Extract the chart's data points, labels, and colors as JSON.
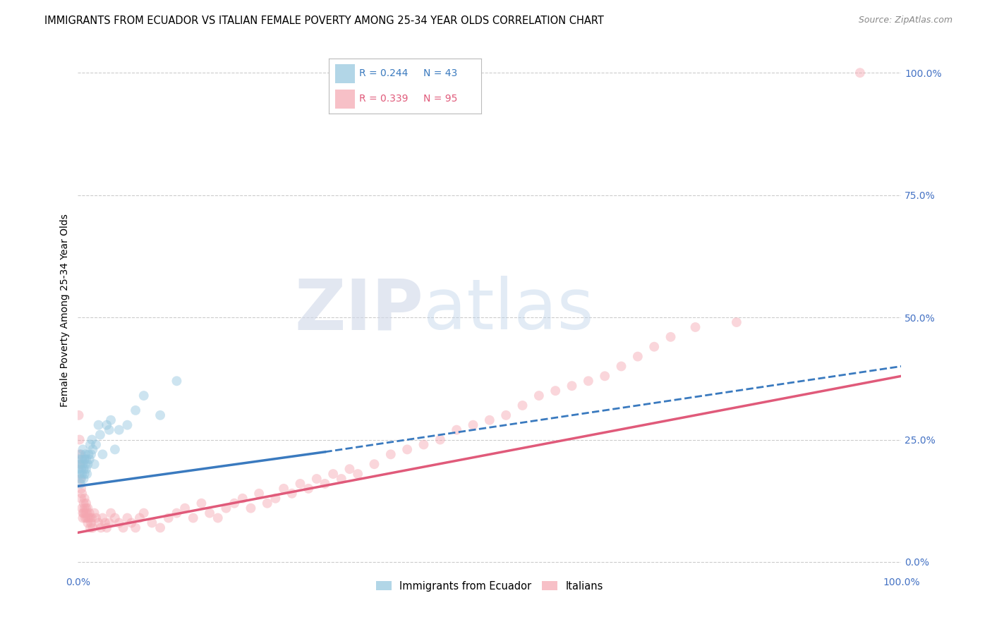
{
  "title": "IMMIGRANTS FROM ECUADOR VS ITALIAN FEMALE POVERTY AMONG 25-34 YEAR OLDS CORRELATION CHART",
  "source": "Source: ZipAtlas.com",
  "ylabel": "Female Poverty Among 25-34 Year Olds",
  "xlim": [
    0,
    1.0
  ],
  "ylim": [
    -0.02,
    1.05
  ],
  "blue_color": "#92c5de",
  "pink_color": "#f4a6b0",
  "blue_line_color": "#3a7abf",
  "pink_line_color": "#e05a7a",
  "tick_color": "#4472c4",
  "legend_R_blue": "R = 0.244",
  "legend_N_blue": "N = 43",
  "legend_R_pink": "R = 0.339",
  "legend_N_pink": "N = 95",
  "legend_label_blue": "Immigrants from Ecuador",
  "legend_label_pink": "Italians",
  "watermark_zip": "ZIP",
  "watermark_atlas": "atlas",
  "grid_color": "#cccccc",
  "background_color": "#ffffff",
  "title_fontsize": 10.5,
  "axis_label_fontsize": 10,
  "tick_fontsize": 10,
  "marker_size": 100,
  "marker_alpha": 0.45,
  "blue_trend_x0": 0.0,
  "blue_trend_x1": 0.3,
  "blue_trend_x1_dash": 1.0,
  "blue_trend_y0": 0.155,
  "blue_trend_y1": 0.225,
  "blue_trend_y1_dash": 0.4,
  "pink_trend_x0": 0.0,
  "pink_trend_x1": 1.0,
  "pink_trend_y0": 0.06,
  "pink_trend_y1": 0.38,
  "blue_scatter_x": [
    0.001,
    0.002,
    0.002,
    0.003,
    0.003,
    0.004,
    0.004,
    0.004,
    0.005,
    0.005,
    0.006,
    0.006,
    0.007,
    0.007,
    0.008,
    0.008,
    0.009,
    0.009,
    0.01,
    0.01,
    0.011,
    0.012,
    0.013,
    0.014,
    0.015,
    0.016,
    0.017,
    0.018,
    0.02,
    0.022,
    0.025,
    0.027,
    0.03,
    0.035,
    0.038,
    0.04,
    0.045,
    0.05,
    0.06,
    0.07,
    0.08,
    0.1,
    0.12
  ],
  "blue_scatter_y": [
    0.19,
    0.21,
    0.18,
    0.2,
    0.16,
    0.17,
    0.22,
    0.19,
    0.21,
    0.18,
    0.23,
    0.2,
    0.19,
    0.17,
    0.21,
    0.18,
    0.2,
    0.22,
    0.19,
    0.21,
    0.18,
    0.2,
    0.22,
    0.21,
    0.24,
    0.22,
    0.25,
    0.23,
    0.2,
    0.24,
    0.28,
    0.26,
    0.22,
    0.28,
    0.27,
    0.29,
    0.23,
    0.27,
    0.28,
    0.31,
    0.34,
    0.3,
    0.37
  ],
  "pink_scatter_x": [
    0.001,
    0.002,
    0.002,
    0.003,
    0.003,
    0.004,
    0.004,
    0.005,
    0.005,
    0.006,
    0.006,
    0.007,
    0.007,
    0.008,
    0.008,
    0.009,
    0.009,
    0.01,
    0.01,
    0.011,
    0.011,
    0.012,
    0.012,
    0.013,
    0.014,
    0.015,
    0.015,
    0.016,
    0.017,
    0.018,
    0.02,
    0.022,
    0.025,
    0.028,
    0.03,
    0.033,
    0.035,
    0.038,
    0.04,
    0.045,
    0.05,
    0.055,
    0.06,
    0.065,
    0.07,
    0.075,
    0.08,
    0.09,
    0.1,
    0.11,
    0.12,
    0.13,
    0.14,
    0.15,
    0.16,
    0.17,
    0.18,
    0.19,
    0.2,
    0.21,
    0.22,
    0.23,
    0.24,
    0.25,
    0.26,
    0.27,
    0.28,
    0.29,
    0.3,
    0.31,
    0.32,
    0.33,
    0.34,
    0.36,
    0.38,
    0.4,
    0.42,
    0.44,
    0.46,
    0.48,
    0.5,
    0.52,
    0.54,
    0.56,
    0.58,
    0.6,
    0.62,
    0.64,
    0.66,
    0.68,
    0.7,
    0.72,
    0.75,
    0.8,
    0.95
  ],
  "pink_scatter_y": [
    0.3,
    0.25,
    0.22,
    0.2,
    0.17,
    0.15,
    0.13,
    0.14,
    0.11,
    0.1,
    0.09,
    0.12,
    0.1,
    0.13,
    0.11,
    0.09,
    0.1,
    0.12,
    0.11,
    0.09,
    0.1,
    0.08,
    0.11,
    0.09,
    0.1,
    0.09,
    0.07,
    0.08,
    0.09,
    0.07,
    0.1,
    0.09,
    0.08,
    0.07,
    0.09,
    0.08,
    0.07,
    0.08,
    0.1,
    0.09,
    0.08,
    0.07,
    0.09,
    0.08,
    0.07,
    0.09,
    0.1,
    0.08,
    0.07,
    0.09,
    0.1,
    0.11,
    0.09,
    0.12,
    0.1,
    0.09,
    0.11,
    0.12,
    0.13,
    0.11,
    0.14,
    0.12,
    0.13,
    0.15,
    0.14,
    0.16,
    0.15,
    0.17,
    0.16,
    0.18,
    0.17,
    0.19,
    0.18,
    0.2,
    0.22,
    0.23,
    0.24,
    0.25,
    0.27,
    0.28,
    0.29,
    0.3,
    0.32,
    0.34,
    0.35,
    0.36,
    0.37,
    0.38,
    0.4,
    0.42,
    0.44,
    0.46,
    0.48,
    0.49,
    1.0
  ]
}
